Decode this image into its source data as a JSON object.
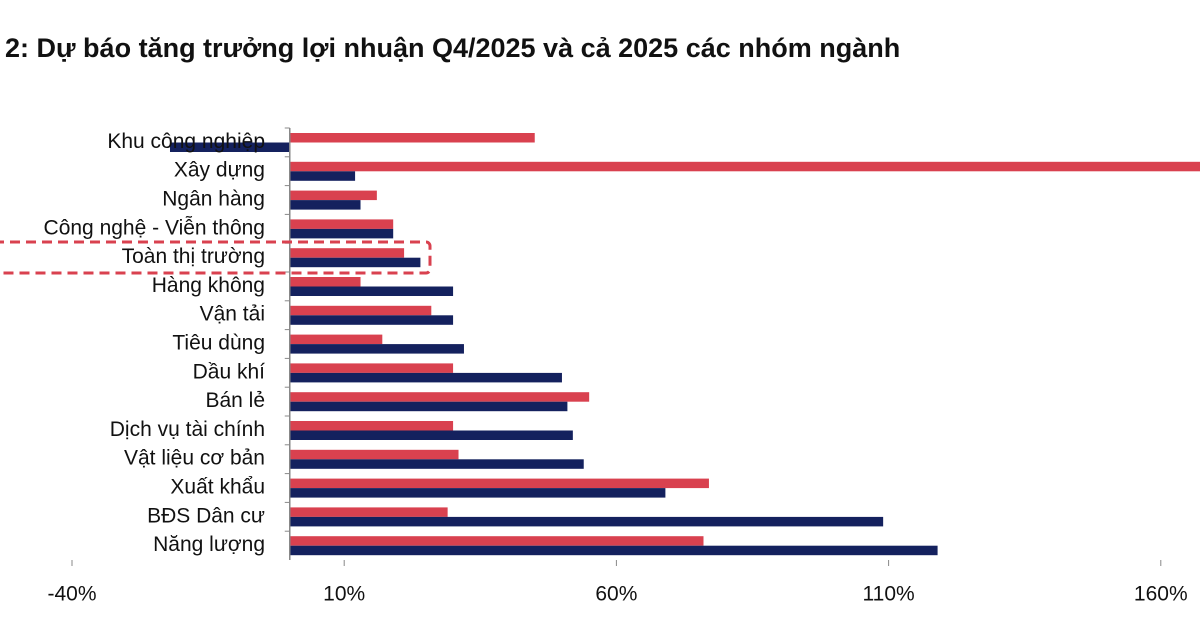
{
  "chart_data": {
    "type": "bar",
    "title": "2: Dự báo tăng trưởng lợi nhuận Q4/2025 và cả 2025 các nhóm ngành",
    "categories": [
      "Khu công nghiệp",
      "Xây dựng",
      "Ngân hàng",
      "Công nghệ - Viễn thông",
      "Toàn thị trường",
      "Hàng không",
      "Vận tải",
      "Tiêu dùng",
      "Dầu khí",
      "Bán lẻ",
      "Dịch vụ tài chính",
      "Vật liệu cơ bản",
      "Xuất khẩu",
      "BĐS Dân cư",
      "Năng lượng"
    ],
    "series": [
      {
        "color": "#d9414f",
        "values": [
          45,
          170,
          16,
          19,
          21,
          13,
          26,
          17,
          30,
          55,
          30,
          31,
          77,
          29,
          76
        ]
      },
      {
        "color": "#14215e",
        "values": [
          -22,
          12,
          13,
          19,
          24,
          30,
          30,
          32,
          50,
          51,
          52,
          54,
          69,
          109,
          119
        ]
      }
    ],
    "orientation": "horizontal",
    "xlim": [
      -40,
      167
    ],
    "xticks": [
      {
        "value": -40,
        "label": "-40%"
      },
      {
        "value": 10,
        "label": "10%"
      },
      {
        "value": 60,
        "label": "60%"
      },
      {
        "value": 110,
        "label": "110%"
      },
      {
        "value": 160,
        "label": "160%"
      }
    ],
    "grid": false
  }
}
